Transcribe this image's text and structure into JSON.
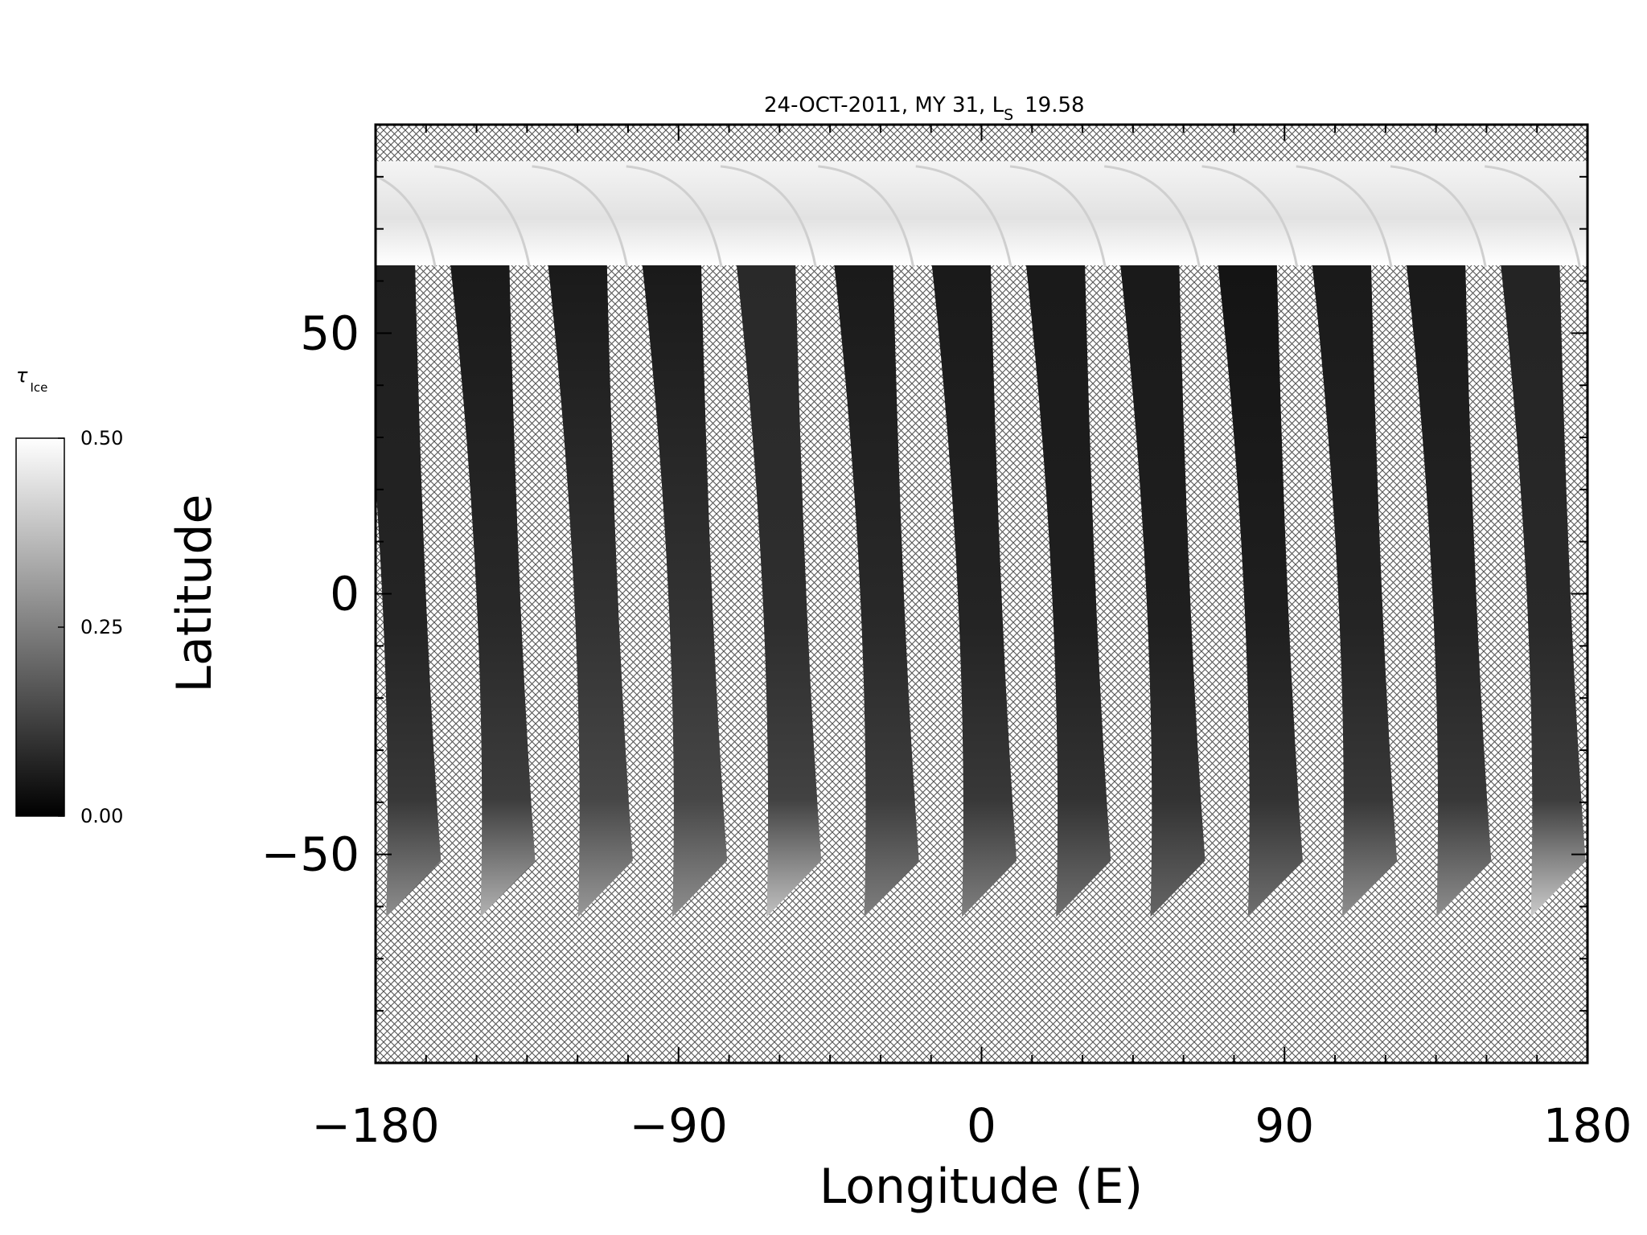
{
  "chart_data": {
    "type": "heatmap",
    "title": "24-OCT-2011, MY 31,  L",
    "title_sub": "S",
    "title_value": "19.58",
    "xlabel": "Longitude (E)",
    "ylabel": "Latitude",
    "xlim": [
      -180,
      180
    ],
    "ylim": [
      -90,
      90
    ],
    "x_ticks": [
      -180,
      -90,
      0,
      90,
      180
    ],
    "y_ticks": [
      -50,
      0,
      50
    ],
    "x_tick_labels": [
      "−180",
      "−90",
      "0",
      "90",
      "180"
    ],
    "y_tick_labels": [
      "−50",
      "0",
      "50"
    ],
    "colorbar": {
      "label": "τ",
      "label_sub": "Ice",
      "min": 0.0,
      "max": 0.5,
      "tick_values": [
        0.0,
        0.25,
        0.5
      ],
      "tick_labels": [
        "0.00",
        "0.25",
        "0.50"
      ],
      "low_color": "#000000",
      "high_color": "#ffffff"
    },
    "no_data_pattern": "crosshatch",
    "colors": {
      "no_data_hatch": "#555555",
      "frame": "#000000"
    },
    "north_cap_lat_range": [
      63,
      83
    ],
    "swath_lat_range": [
      -62,
      63
    ],
    "swaths": [
      {
        "lon_north": -177,
        "lon_south": -166,
        "tau_north": 0.06,
        "tau_mid": 0.07,
        "tau_south": 0.28
      },
      {
        "lon_north": -149,
        "lon_south": -138,
        "tau_north": 0.05,
        "tau_mid": 0.08,
        "tau_south": 0.35
      },
      {
        "lon_north": -120,
        "lon_south": -109,
        "tau_north": 0.05,
        "tau_mid": 0.1,
        "tau_south": 0.3
      },
      {
        "lon_north": -92,
        "lon_south": -81,
        "tau_north": 0.05,
        "tau_mid": 0.1,
        "tau_south": 0.28
      },
      {
        "lon_north": -64,
        "lon_south": -53,
        "tau_north": 0.08,
        "tau_mid": 0.09,
        "tau_south": 0.38
      },
      {
        "lon_north": -35,
        "lon_south": -24,
        "tau_north": 0.05,
        "tau_mid": 0.08,
        "tau_south": 0.25
      },
      {
        "lon_north": -6,
        "lon_south": 5,
        "tau_north": 0.05,
        "tau_mid": 0.07,
        "tau_south": 0.25
      },
      {
        "lon_north": 22,
        "lon_south": 33,
        "tau_north": 0.05,
        "tau_mid": 0.06,
        "tau_south": 0.22
      },
      {
        "lon_north": 50,
        "lon_south": 61,
        "tau_north": 0.05,
        "tau_mid": 0.06,
        "tau_south": 0.2
      },
      {
        "lon_north": 79,
        "lon_south": 90,
        "tau_north": 0.04,
        "tau_mid": 0.06,
        "tau_south": 0.22
      },
      {
        "lon_north": 107,
        "lon_south": 118,
        "tau_north": 0.05,
        "tau_mid": 0.07,
        "tau_south": 0.28
      },
      {
        "lon_north": 135,
        "lon_south": 146,
        "tau_north": 0.05,
        "tau_mid": 0.07,
        "tau_south": 0.28
      },
      {
        "lon_north": 163,
        "lon_south": 174,
        "tau_north": 0.07,
        "tau_mid": 0.08,
        "tau_south": 0.4
      }
    ]
  }
}
